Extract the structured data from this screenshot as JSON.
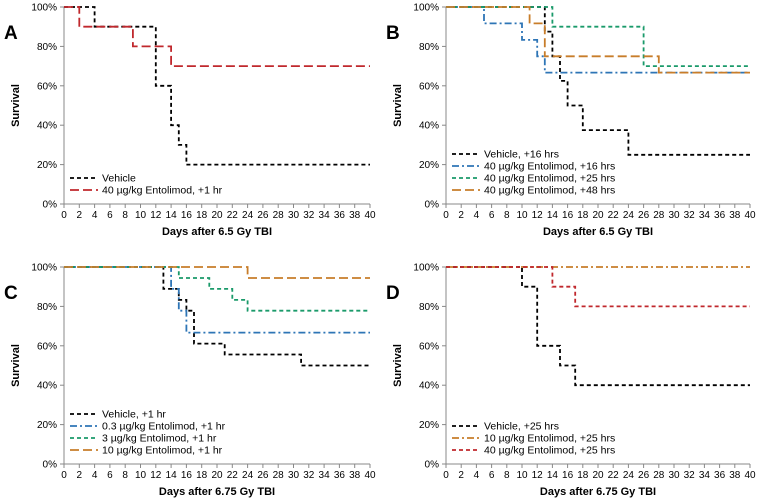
{
  "chart_data": [
    {
      "panel": "A",
      "type": "line",
      "step": true,
      "xlabel": "Days after 6.5 Gy TBI",
      "ylabel": "Survival",
      "xlim": [
        0,
        40
      ],
      "ylim": [
        0,
        100
      ],
      "x_ticks": [
        "0",
        "2",
        "4",
        "6",
        "8",
        "10",
        "12",
        "14",
        "16",
        "18",
        "20",
        "22",
        "24",
        "26",
        "28",
        "30",
        "32",
        "34",
        "36",
        "38",
        "40"
      ],
      "y_ticks": [
        "0%",
        "20%",
        "40%",
        "60%",
        "80%",
        "100%"
      ],
      "legend_position": "bottom-left",
      "series": [
        {
          "name": "Vehicle",
          "color": "#000000",
          "dash": "dash",
          "points": [
            [
              0,
              100
            ],
            [
              4,
              100
            ],
            [
              4,
              90
            ],
            [
              12,
              90
            ],
            [
              12,
              60
            ],
            [
              14,
              60
            ],
            [
              14,
              40
            ],
            [
              15,
              40
            ],
            [
              15,
              30
            ],
            [
              16,
              30
            ],
            [
              16,
              20
            ],
            [
              40,
              20
            ]
          ]
        },
        {
          "name": "40 µg/kg Entolimod, +1 hr",
          "color": "#c0282d",
          "dash": "longdash",
          "points": [
            [
              0,
              100
            ],
            [
              2,
              100
            ],
            [
              2,
              90
            ],
            [
              9,
              90
            ],
            [
              9,
              80
            ],
            [
              14,
              80
            ],
            [
              14,
              70
            ],
            [
              40,
              70
            ]
          ]
        }
      ]
    },
    {
      "panel": "B",
      "type": "line",
      "step": true,
      "xlabel": "Days after 6.5 Gy TBI",
      "ylabel": "Survival",
      "xlim": [
        0,
        40
      ],
      "ylim": [
        0,
        100
      ],
      "x_ticks": [
        "0",
        "2",
        "4",
        "6",
        "8",
        "10",
        "12",
        "14",
        "16",
        "18",
        "20",
        "22",
        "24",
        "26",
        "28",
        "30",
        "32",
        "34",
        "36",
        "38",
        "40"
      ],
      "y_ticks": [
        "0%",
        "20%",
        "40%",
        "60%",
        "80%",
        "100%"
      ],
      "legend_position": "bottom-left",
      "series": [
        {
          "name": "Vehicle, +16 hrs",
          "color": "#000000",
          "dash": "dash",
          "points": [
            [
              0,
              100
            ],
            [
              13,
              100
            ],
            [
              13,
              87.5
            ],
            [
              14,
              87.5
            ],
            [
              14,
              75
            ],
            [
              15,
              75
            ],
            [
              15,
              62.5
            ],
            [
              16,
              62.5
            ],
            [
              16,
              50
            ],
            [
              18,
              50
            ],
            [
              18,
              37.5
            ],
            [
              24,
              37.5
            ],
            [
              24,
              25
            ],
            [
              40,
              25
            ]
          ]
        },
        {
          "name": "40 µg/kg Entolimod, +16 hrs",
          "color": "#2e75b6",
          "dash": "dashdot",
          "points": [
            [
              0,
              100
            ],
            [
              5,
              100
            ],
            [
              5,
              91.7
            ],
            [
              10,
              91.7
            ],
            [
              10,
              83.3
            ],
            [
              12,
              83.3
            ],
            [
              12,
              75
            ],
            [
              13,
              75
            ],
            [
              13,
              66.7
            ],
            [
              40,
              66.7
            ]
          ]
        },
        {
          "name": "40 µg/kg Entolimod, +25 hrs",
          "color": "#1a9a6a",
          "dash": "dash",
          "points": [
            [
              0,
              100
            ],
            [
              14,
              100
            ],
            [
              14,
              90
            ],
            [
              26,
              90
            ],
            [
              26,
              70
            ],
            [
              40,
              70
            ]
          ]
        },
        {
          "name": "40 µg/kg Entolimod, +48 hrs",
          "color": "#c87d2a",
          "dash": "longdash",
          "points": [
            [
              0,
              100
            ],
            [
              11,
              100
            ],
            [
              11,
              91.7
            ],
            [
              13,
              91.7
            ],
            [
              13,
              75
            ],
            [
              28,
              75
            ],
            [
              28,
              66.7
            ],
            [
              40,
              66.7
            ]
          ]
        }
      ]
    },
    {
      "panel": "C",
      "type": "line",
      "step": true,
      "xlabel": "Days after 6.75 Gy TBI",
      "ylabel": "Survival",
      "xlim": [
        0,
        40
      ],
      "ylim": [
        0,
        100
      ],
      "x_ticks": [
        "0",
        "2",
        "4",
        "6",
        "8",
        "10",
        "12",
        "14",
        "16",
        "18",
        "20",
        "22",
        "24",
        "26",
        "28",
        "30",
        "32",
        "34",
        "36",
        "38",
        "40"
      ],
      "y_ticks": [
        "0%",
        "20%",
        "40%",
        "60%",
        "80%",
        "100%"
      ],
      "legend_position": "bottom-left",
      "series": [
        {
          "name": "Vehicle, +1 hr",
          "color": "#000000",
          "dash": "dash",
          "points": [
            [
              0,
              100
            ],
            [
              13,
              100
            ],
            [
              13,
              88.9
            ],
            [
              15,
              88.9
            ],
            [
              15,
              83.3
            ],
            [
              16,
              83.3
            ],
            [
              16,
              77.8
            ],
            [
              17,
              77.8
            ],
            [
              17,
              61.1
            ],
            [
              21,
              61.1
            ],
            [
              21,
              55.6
            ],
            [
              31,
              55.6
            ],
            [
              31,
              50
            ],
            [
              40,
              50
            ]
          ]
        },
        {
          "name": "0.3 µg/kg Entolimod, +1 hr",
          "color": "#2e75b6",
          "dash": "dashdot",
          "points": [
            [
              0,
              100
            ],
            [
              14,
              100
            ],
            [
              14,
              88.9
            ],
            [
              15,
              88.9
            ],
            [
              15,
              77.8
            ],
            [
              16,
              77.8
            ],
            [
              16,
              66.7
            ],
            [
              40,
              66.7
            ]
          ]
        },
        {
          "name": "3 µg/kg Entolimod, +1 hr",
          "color": "#1a9a6a",
          "dash": "dash",
          "points": [
            [
              0,
              100
            ],
            [
              15,
              100
            ],
            [
              15,
              94.4
            ],
            [
              19,
              94.4
            ],
            [
              19,
              88.9
            ],
            [
              22,
              88.9
            ],
            [
              22,
              83.3
            ],
            [
              24,
              83.3
            ],
            [
              24,
              77.8
            ],
            [
              40,
              77.8
            ]
          ]
        },
        {
          "name": "10 µg/kg Entolimod, +1 hr",
          "color": "#c87d2a",
          "dash": "longdash",
          "points": [
            [
              0,
              100
            ],
            [
              24,
              100
            ],
            [
              24,
              94.4
            ],
            [
              40,
              94.4
            ]
          ]
        }
      ]
    },
    {
      "panel": "D",
      "type": "line",
      "step": true,
      "xlabel": "Days after 6.75 Gy TBI",
      "ylabel": "Survival",
      "xlim": [
        0,
        40
      ],
      "ylim": [
        0,
        100
      ],
      "x_ticks": [
        "0",
        "2",
        "4",
        "6",
        "8",
        "10",
        "12",
        "14",
        "16",
        "18",
        "20",
        "22",
        "24",
        "26",
        "28",
        "30",
        "32",
        "34",
        "36",
        "38",
        "40"
      ],
      "y_ticks": [
        "0%",
        "20%",
        "40%",
        "60%",
        "80%",
        "100%"
      ],
      "legend_position": "bottom-left",
      "series": [
        {
          "name": "Vehicle, +25 hrs",
          "color": "#000000",
          "dash": "dash",
          "points": [
            [
              0,
              100
            ],
            [
              10,
              100
            ],
            [
              10,
              90
            ],
            [
              12,
              90
            ],
            [
              12,
              60
            ],
            [
              15,
              60
            ],
            [
              15,
              50
            ],
            [
              17,
              50
            ],
            [
              17,
              40
            ],
            [
              40,
              40
            ]
          ]
        },
        {
          "name": "10 µg/kg Entolimod, +25 hrs",
          "color": "#c87d2a",
          "dash": "dashdot",
          "points": [
            [
              0,
              100
            ],
            [
              40,
              100
            ]
          ]
        },
        {
          "name": "40 µg/kg Entolimod, +25 hrs",
          "color": "#c0282d",
          "dash": "dash",
          "points": [
            [
              0,
              100
            ],
            [
              14,
              100
            ],
            [
              14,
              90
            ],
            [
              17,
              90
            ],
            [
              17,
              80
            ],
            [
              40,
              80
            ]
          ]
        }
      ]
    }
  ]
}
